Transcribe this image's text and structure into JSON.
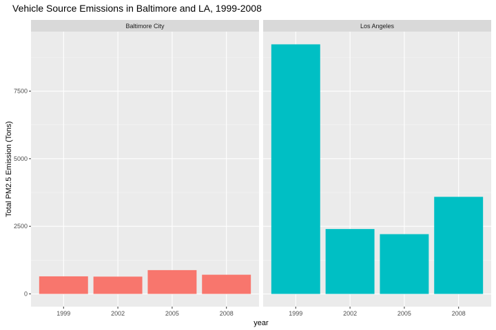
{
  "chart_data": {
    "type": "bar",
    "title": "Vehicle Source Emissions in Baltimore and LA, 1999-2008",
    "xlabel": "year",
    "ylabel": "Total PM2.5 Emission (Tons)",
    "categories": [
      "1999",
      "2002",
      "2005",
      "2008"
    ],
    "yticks": [
      0,
      2500,
      5000,
      7500
    ],
    "ylim": [
      -470,
      9700
    ],
    "grid": true,
    "legend": "none",
    "panels": [
      {
        "name": "Baltimore City",
        "color": "#F8766D",
        "values": [
          650,
          640,
          880,
          710
        ]
      },
      {
        "name": "Los Angeles",
        "color": "#00BFC4",
        "values": [
          9230,
          2400,
          2210,
          3590
        ]
      }
    ]
  }
}
